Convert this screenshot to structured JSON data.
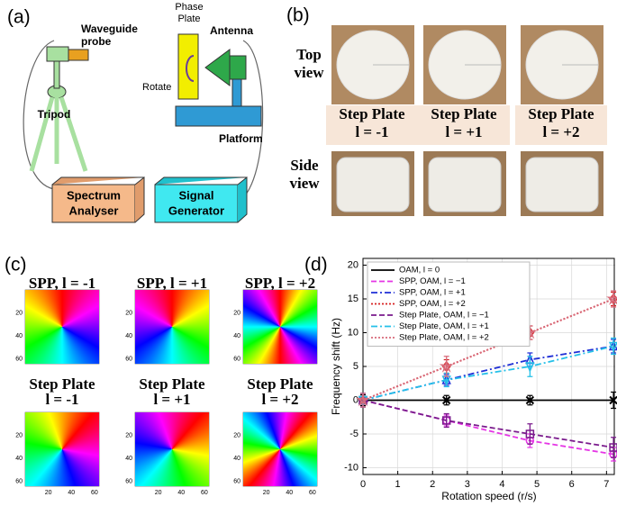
{
  "panel_a": {
    "label": "(a)",
    "waveguide_probe": [
      "Waveguide",
      "probe"
    ],
    "tripod": "Tripod",
    "phase_plate": [
      "Phase",
      "Plate"
    ],
    "antenna": "Antenna",
    "rotate": "Rotate",
    "platform": "Platform",
    "spectrum_analyser": [
      "Spectrum",
      "Analyser"
    ],
    "signal_generator": [
      "Signal",
      "Generator"
    ]
  },
  "panel_b": {
    "label": "(b)",
    "top_view": [
      "Top",
      "view"
    ],
    "side_view": [
      "Side",
      "view"
    ],
    "plates": [
      [
        "Step Plate",
        "l = -1"
      ],
      [
        "Step Plate",
        "l = +1"
      ],
      [
        "Step Plate",
        "l = +2"
      ]
    ]
  },
  "panel_c": {
    "label": "(c)",
    "titles": [
      [
        "SPP, l = -1"
      ],
      [
        "SPP, l = +1"
      ],
      [
        "SPP, l = +2"
      ],
      [
        "Step Plate",
        "l = -1"
      ],
      [
        "Step Plate",
        "l = +1"
      ],
      [
        "Step Plate",
        "l = +2"
      ]
    ],
    "ticks": [
      20,
      40,
      60
    ]
  },
  "chart_data": {
    "type": "line",
    "panel_label": "(d)",
    "x_label": "Rotation speed (r/s)",
    "y_label": "Frequency shift (Hz)",
    "x": [
      0,
      2.4,
      4.8,
      7.2
    ],
    "xlim": [
      0,
      7.25
    ],
    "xticks": [
      0,
      1,
      2,
      3,
      4,
      5,
      6,
      7
    ],
    "ylim": [
      -11,
      21
    ],
    "yticks": [
      -10,
      -5,
      0,
      5,
      10,
      15,
      20
    ],
    "grid": true,
    "legend": "upper left",
    "series": [
      {
        "name": "OAM, l = 0",
        "color": "#000000",
        "marker": "x",
        "dash": "",
        "values": [
          0,
          0,
          0,
          0
        ],
        "errors": [
          0.8,
          0.7,
          0.7,
          1.2
        ]
      },
      {
        "name": "SPP, OAM, l = −1",
        "color": "#e535e5",
        "marker": "o",
        "dash": "6 3",
        "values": [
          0,
          -3,
          -6,
          -8
        ],
        "errors": [
          1,
          0.8,
          1,
          1
        ]
      },
      {
        "name": "SPP, OAM, l = +1",
        "color": "#1f2fd6",
        "marker": "^",
        "dash": "7 3 2 3",
        "values": [
          0,
          3,
          6,
          8
        ],
        "errors": [
          1,
          0.8,
          1,
          1
        ]
      },
      {
        "name": "SPP, OAM, l = +2",
        "color": "#d62020",
        "marker": "D",
        "dash": "2 2",
        "values": [
          0,
          5,
          10,
          15
        ],
        "errors": [
          1,
          1,
          1,
          1
        ]
      },
      {
        "name": "Step Plate, OAM, l = −1",
        "color": "#7a1a8c",
        "marker": "s",
        "dash": "6 3",
        "values": [
          0,
          -3,
          -5,
          -7
        ],
        "errors": [
          1,
          1,
          1.5,
          1.5
        ]
      },
      {
        "name": "Step Plate, OAM, l = +1",
        "color": "#25c0e8",
        "marker": "v",
        "dash": "7 3 2 3",
        "values": [
          0,
          3,
          5,
          8
        ],
        "errors": [
          1,
          1,
          1.5,
          1.2
        ]
      },
      {
        "name": "Step Plate, OAM, l = +2",
        "color": "#d86a7a",
        "marker": "*",
        "dash": "2 2",
        "values": [
          0,
          5,
          10,
          15
        ],
        "errors": [
          1,
          1.5,
          1,
          1.2
        ]
      }
    ]
  }
}
